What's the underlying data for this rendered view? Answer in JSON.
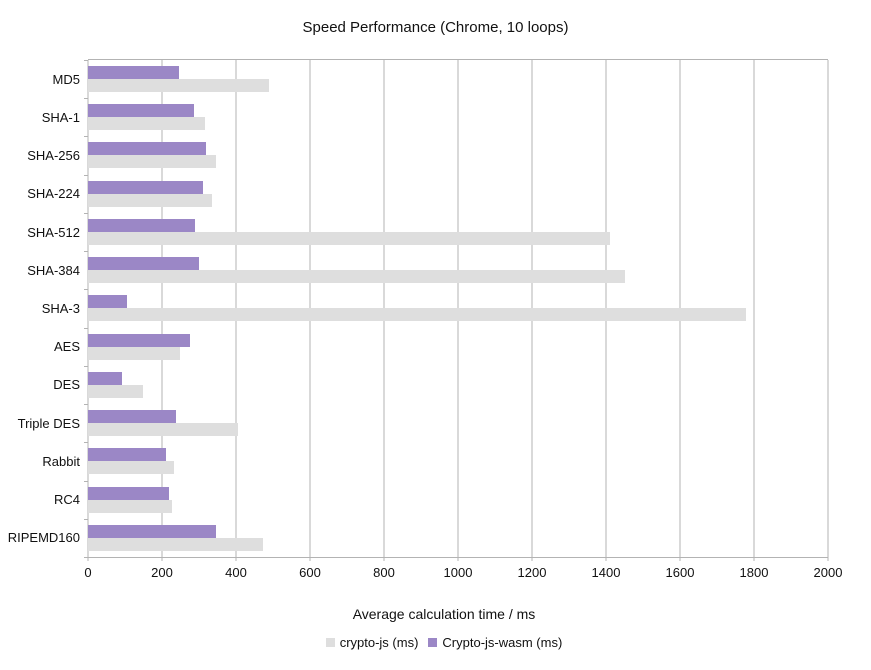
{
  "chart_data": {
    "type": "bar",
    "orientation": "horizontal",
    "title": "Speed Performance (Chrome, 10 loops)",
    "xlabel": "Average calculation time / ms",
    "ylabel": "",
    "xlim": [
      0,
      2000
    ],
    "x_ticks": [
      0,
      200,
      400,
      600,
      800,
      1000,
      1200,
      1400,
      1600,
      1800,
      2000
    ],
    "grid": true,
    "legend_position": "bottom",
    "grid_color": "#b3b3b3",
    "categories": [
      "MD5",
      "SHA-1",
      "SHA-256",
      "SHA-224",
      "SHA-512",
      "SHA-384",
      "SHA-3",
      "AES",
      "DES",
      "Triple DES",
      "Rabbit",
      "RC4",
      "RIPEMD160"
    ],
    "series": [
      {
        "name": "crypto-js (ms)",
        "color": "#dedede",
        "values": [
          490,
          315,
          345,
          335,
          1410,
          1450,
          1778,
          248,
          148,
          406,
          232,
          226,
          472
        ]
      },
      {
        "name": "Crypto-js-wasm (ms)",
        "color": "#9b87c6",
        "values": [
          245,
          287,
          318,
          310,
          290,
          300,
          105,
          276,
          93,
          238,
          211,
          218,
          345
        ]
      }
    ],
    "bar_order_note": "within each category the wasm (purple) bar is drawn above the crypto-js (gray) bar"
  }
}
